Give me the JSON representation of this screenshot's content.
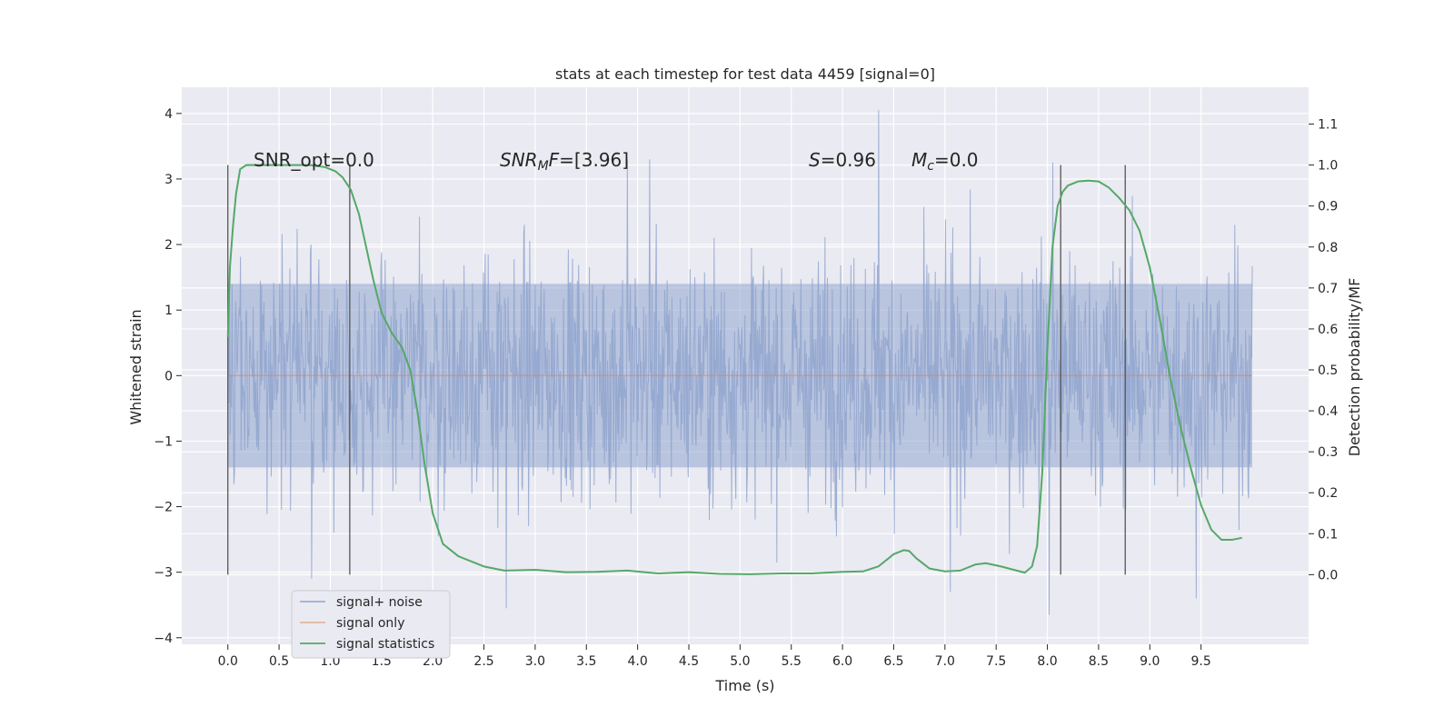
{
  "chart_data": {
    "type": "line",
    "title": "stats at each timestep for test data 4459 [signal=0]",
    "xlabel": "Time (s)",
    "ylabel": "Whitened strain",
    "y2label": "Detection probability/MF",
    "xlim": [
      -0.45,
      10.55
    ],
    "ylim": [
      -4.1,
      4.4
    ],
    "y2lim": [
      -0.17,
      1.19
    ],
    "xticks": [
      "0.0",
      "0.5",
      "1.0",
      "1.5",
      "2.0",
      "2.5",
      "3.0",
      "3.5",
      "4.0",
      "4.5",
      "5.0",
      "5.5",
      "6.0",
      "6.5",
      "7.0",
      "7.5",
      "8.0",
      "8.5",
      "9.0",
      "9.5"
    ],
    "yticks": [
      "4",
      "3",
      "2",
      "1",
      "0",
      "−1",
      "−2",
      "−3",
      "−4"
    ],
    "y2ticks": [
      "1.1",
      "1.0",
      "0.9",
      "0.8",
      "0.7",
      "0.6",
      "0.5",
      "0.4",
      "0.3",
      "0.2",
      "0.1",
      "0.0"
    ],
    "grid": true,
    "legend_position": "lower-left",
    "annotations": {
      "snr_opt": "SNR_opt=0.0",
      "snr_mf": "=[3.96]",
      "s": "=0.96",
      "mc": "=0.0"
    },
    "vertical_markers_x": [
      0.0,
      1.19,
      8.13,
      8.76
    ],
    "series": [
      {
        "name": "signal+ noise",
        "color": "#8fa4ce",
        "x_range": [
          0.0,
          10.0
        ],
        "envelope_upper_approx": 1.4,
        "envelope_lower_approx": -1.4,
        "peak_max": 4.05,
        "peak_min": -3.6,
        "notable_peaks": [
          {
            "x": 6.35,
            "y": 4.05
          },
          {
            "x": 3.9,
            "y": 3.3
          },
          {
            "x": 4.12,
            "y": 3.3
          },
          {
            "x": 8.05,
            "y": 3.25
          },
          {
            "x": 8.02,
            "y": -3.65
          },
          {
            "x": 2.72,
            "y": -3.55
          },
          {
            "x": 9.45,
            "y": -3.4
          },
          {
            "x": 0.82,
            "y": -3.1
          },
          {
            "x": 7.05,
            "y": -3.3
          }
        ]
      },
      {
        "name": "signal only",
        "color": "#dd8452",
        "x": [
          0.0,
          10.0
        ],
        "y": [
          0.0,
          0.0
        ]
      },
      {
        "name": "signal statistics",
        "color": "#55a868",
        "axis": "right",
        "x": [
          0.0,
          0.02,
          0.05,
          0.08,
          0.12,
          0.18,
          0.25,
          0.4,
          0.6,
          0.8,
          0.95,
          1.05,
          1.12,
          1.2,
          1.28,
          1.35,
          1.42,
          1.5,
          1.6,
          1.7,
          1.78,
          1.85,
          1.92,
          2.0,
          2.1,
          2.25,
          2.5,
          2.7,
          3.0,
          3.3,
          3.6,
          3.9,
          4.2,
          4.5,
          4.8,
          5.1,
          5.4,
          5.7,
          6.0,
          6.2,
          6.35,
          6.5,
          6.6,
          6.65,
          6.72,
          6.85,
          7.0,
          7.15,
          7.3,
          7.4,
          7.55,
          7.7,
          7.78,
          7.85,
          7.9,
          7.95,
          8.0,
          8.05,
          8.1,
          8.15,
          8.2,
          8.3,
          8.4,
          8.5,
          8.6,
          8.7,
          8.8,
          8.9,
          9.0,
          9.1,
          9.2,
          9.3,
          9.4,
          9.5,
          9.6,
          9.7,
          9.8,
          9.9
        ],
        "y": [
          0.58,
          0.75,
          0.85,
          0.93,
          0.99,
          1.0,
          1.0,
          1.0,
          1.0,
          1.0,
          0.995,
          0.985,
          0.97,
          0.94,
          0.88,
          0.8,
          0.72,
          0.64,
          0.59,
          0.555,
          0.5,
          0.4,
          0.27,
          0.15,
          0.075,
          0.045,
          0.02,
          0.01,
          0.012,
          0.006,
          0.007,
          0.01,
          0.003,
          0.006,
          0.002,
          0.001,
          0.003,
          0.003,
          0.007,
          0.008,
          0.02,
          0.05,
          0.06,
          0.058,
          0.04,
          0.015,
          0.008,
          0.01,
          0.025,
          0.028,
          0.02,
          0.01,
          0.005,
          0.02,
          0.07,
          0.25,
          0.55,
          0.8,
          0.9,
          0.935,
          0.95,
          0.96,
          0.962,
          0.96,
          0.945,
          0.92,
          0.89,
          0.84,
          0.75,
          0.62,
          0.48,
          0.36,
          0.26,
          0.17,
          0.11,
          0.085,
          0.085,
          0.09
        ]
      }
    ]
  }
}
